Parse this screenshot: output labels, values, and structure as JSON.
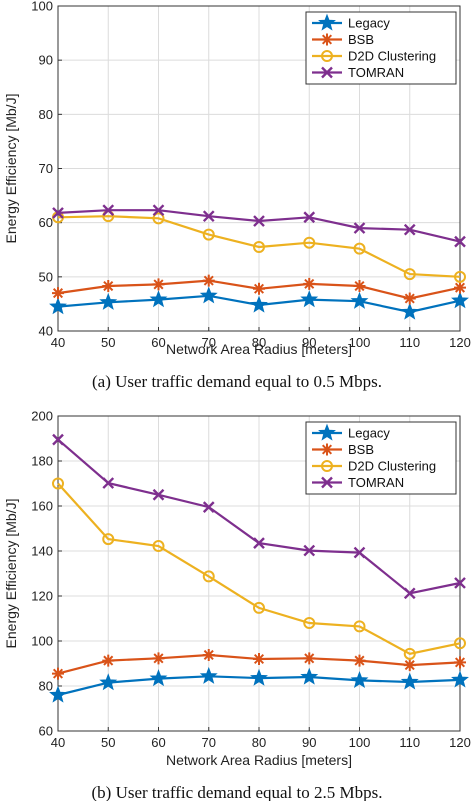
{
  "chart_data": [
    {
      "type": "line",
      "x": [
        40,
        50,
        60,
        70,
        80,
        90,
        100,
        110,
        120
      ],
      "xticks": [
        "40",
        "50",
        "60",
        "70",
        "80",
        "90",
        "100",
        "110",
        "120"
      ],
      "xlim": [
        40,
        120
      ],
      "ylim": [
        40,
        100
      ],
      "yticks": [
        "40",
        "50",
        "60",
        "70",
        "80",
        "90",
        "100"
      ],
      "xlabel": "Network Area Radius [meters]",
      "ylabel": "Energy Efficiency [Mb/J]",
      "grid": true,
      "legend_position": "top-right",
      "caption": "(a)  User traffic demand equal to 0.5 Mbps.",
      "series": [
        {
          "name": "Legacy",
          "color": "#0072BD",
          "marker": "star",
          "values": [
            44.5,
            45.3,
            45.8,
            46.5,
            44.8,
            45.8,
            45.5,
            43.5,
            45.6
          ]
        },
        {
          "name": "BSB",
          "color": "#D95319",
          "marker": "asterisk",
          "values": [
            47.0,
            48.3,
            48.6,
            49.3,
            47.8,
            48.7,
            48.3,
            46.0,
            48.0
          ]
        },
        {
          "name": "D2D Clustering",
          "color": "#EDB120",
          "marker": "circle",
          "values": [
            61.0,
            61.2,
            60.8,
            57.8,
            55.5,
            56.3,
            55.2,
            50.5,
            50.0
          ]
        },
        {
          "name": "TOMRAN",
          "color": "#7E2F8E",
          "marker": "x",
          "values": [
            61.8,
            62.3,
            62.3,
            61.2,
            60.3,
            61.0,
            59.0,
            58.7,
            56.5
          ]
        }
      ]
    },
    {
      "type": "line",
      "x": [
        40,
        50,
        60,
        70,
        80,
        90,
        100,
        110,
        120
      ],
      "xticks": [
        "40",
        "50",
        "60",
        "70",
        "80",
        "90",
        "100",
        "110",
        "120"
      ],
      "xlim": [
        40,
        120
      ],
      "ylim": [
        60,
        200
      ],
      "yticks": [
        "60",
        "80",
        "100",
        "120",
        "140",
        "160",
        "180",
        "200"
      ],
      "xlabel": "Network Area Radius [meters]",
      "ylabel": "Energy Efficiency [Mb/J]",
      "grid": true,
      "legend_position": "top-right",
      "caption": "(b)  User traffic demand equal to 2.5 Mbps.",
      "series": [
        {
          "name": "Legacy",
          "color": "#0072BD",
          "marker": "star",
          "values": [
            76,
            81.5,
            83.3,
            84.3,
            83.5,
            84.0,
            82.5,
            81.8,
            82.7
          ]
        },
        {
          "name": "BSB",
          "color": "#D95319",
          "marker": "asterisk",
          "values": [
            85.5,
            91.3,
            92.3,
            93.8,
            92.0,
            92.3,
            91.3,
            89.3,
            90.5
          ]
        },
        {
          "name": "D2D Clustering",
          "color": "#EDB120",
          "marker": "circle",
          "values": [
            170,
            145.3,
            142.2,
            128.7,
            114.7,
            108.0,
            106.5,
            94.3,
            99.0
          ]
        },
        {
          "name": "TOMRAN",
          "color": "#7E2F8E",
          "marker": "x",
          "values": [
            189.5,
            170.2,
            165.0,
            159.5,
            143.5,
            140.2,
            139.3,
            121.2,
            125.8
          ]
        }
      ]
    }
  ]
}
